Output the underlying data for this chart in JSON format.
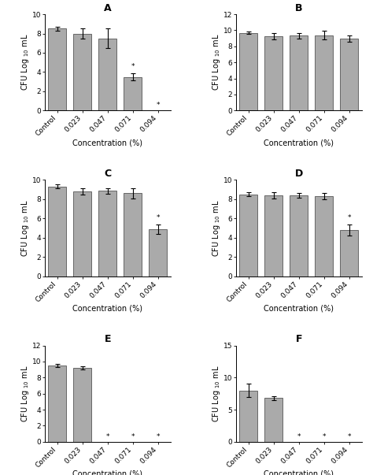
{
  "panels": [
    {
      "label": "A",
      "ylim": [
        0,
        10
      ],
      "yticks": [
        0,
        2,
        4,
        6,
        8,
        10
      ],
      "bars": [
        8.5,
        8.0,
        7.5,
        3.5,
        0.0
      ],
      "errors": [
        0.2,
        0.5,
        1.0,
        0.4,
        0.0
      ],
      "asterisk": [
        false,
        false,
        false,
        true,
        true
      ],
      "zero_bars": [
        false,
        false,
        false,
        false,
        true
      ]
    },
    {
      "label": "B",
      "ylim": [
        0,
        12
      ],
      "yticks": [
        0,
        2,
        4,
        6,
        8,
        10,
        12
      ],
      "bars": [
        9.7,
        9.3,
        9.35,
        9.4,
        9.0
      ],
      "errors": [
        0.15,
        0.4,
        0.35,
        0.5,
        0.4
      ],
      "asterisk": [
        false,
        false,
        false,
        false,
        false
      ],
      "zero_bars": [
        false,
        false,
        false,
        false,
        false
      ]
    },
    {
      "label": "C",
      "ylim": [
        0,
        10
      ],
      "yticks": [
        0,
        2,
        4,
        6,
        8,
        10
      ],
      "bars": [
        9.3,
        8.8,
        8.85,
        8.6,
        4.9
      ],
      "errors": [
        0.2,
        0.3,
        0.3,
        0.5,
        0.5
      ],
      "asterisk": [
        false,
        false,
        false,
        false,
        true
      ],
      "zero_bars": [
        false,
        false,
        false,
        false,
        false
      ]
    },
    {
      "label": "D",
      "ylim": [
        0,
        10
      ],
      "yticks": [
        0,
        2,
        4,
        6,
        8,
        10
      ],
      "bars": [
        8.5,
        8.4,
        8.4,
        8.3,
        4.8
      ],
      "errors": [
        0.2,
        0.3,
        0.25,
        0.3,
        0.6
      ],
      "asterisk": [
        false,
        false,
        false,
        false,
        true
      ],
      "zero_bars": [
        false,
        false,
        false,
        false,
        false
      ]
    },
    {
      "label": "E",
      "ylim": [
        0,
        12
      ],
      "yticks": [
        0,
        2,
        4,
        6,
        8,
        10,
        12
      ],
      "bars": [
        9.5,
        9.2,
        0.0,
        0.0,
        0.0
      ],
      "errors": [
        0.15,
        0.2,
        0.0,
        0.0,
        0.0
      ],
      "asterisk": [
        false,
        false,
        true,
        true,
        true
      ],
      "zero_bars": [
        false,
        false,
        true,
        true,
        true
      ]
    },
    {
      "label": "F",
      "ylim": [
        0,
        15
      ],
      "yticks": [
        0,
        5,
        10,
        15
      ],
      "bars": [
        8.0,
        6.8,
        0.0,
        0.0,
        0.0
      ],
      "errors": [
        1.0,
        0.3,
        0.0,
        0.0,
        0.0
      ],
      "asterisk": [
        false,
        false,
        true,
        true,
        true
      ],
      "zero_bars": [
        false,
        false,
        true,
        true,
        true
      ]
    }
  ],
  "categories": [
    "Control",
    "0.023",
    "0.047",
    "0.071",
    "0.094"
  ],
  "bar_color": "#aaaaaa",
  "bar_edgecolor": "#555555",
  "xlabel": "Concentration (%)",
  "ylabel": "CFU Log $_{10}$ mL",
  "title_fontsize": 9,
  "label_fontsize": 7,
  "tick_fontsize": 6.5
}
